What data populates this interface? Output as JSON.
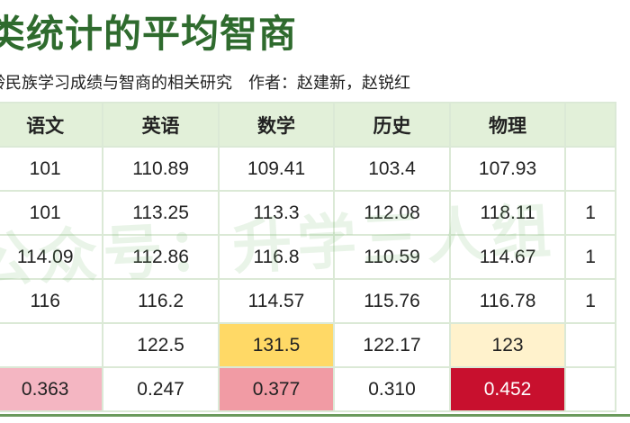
{
  "page": {
    "title": "类统计的平均智商",
    "subtitle": "龄民族学习成绩与智商的相关研究　作者：赵建新，赵锐红",
    "watermark": "公众号：升学三人组"
  },
  "table": {
    "headers": [
      "语文",
      "英语",
      "数学",
      "历史",
      "物理",
      ""
    ],
    "rows": [
      [
        {
          "v": "101"
        },
        {
          "v": "110.89"
        },
        {
          "v": "109.41"
        },
        {
          "v": "103.4"
        },
        {
          "v": "107.93"
        },
        {
          "v": ""
        }
      ],
      [
        {
          "v": "101"
        },
        {
          "v": "113.25"
        },
        {
          "v": "113.3"
        },
        {
          "v": "112.08"
        },
        {
          "v": "118.11"
        },
        {
          "v": "1"
        }
      ],
      [
        {
          "v": "114.09"
        },
        {
          "v": "112.86"
        },
        {
          "v": "116.8"
        },
        {
          "v": "110.59"
        },
        {
          "v": "114.67"
        },
        {
          "v": "1"
        }
      ],
      [
        {
          "v": "116"
        },
        {
          "v": "116.2"
        },
        {
          "v": "114.57"
        },
        {
          "v": "115.76"
        },
        {
          "v": "116.78"
        },
        {
          "v": "1"
        }
      ],
      [
        {
          "v": ""
        },
        {
          "v": "122.5"
        },
        {
          "v": "131.5",
          "bg": "#ffd966"
        },
        {
          "v": "122.17"
        },
        {
          "v": "123",
          "bg": "#fff2cc"
        },
        {
          "v": ""
        }
      ],
      [
        {
          "v": "0.363",
          "bg": "#f4b6c2"
        },
        {
          "v": "0.247"
        },
        {
          "v": "0.377",
          "bg": "#f19ba4"
        },
        {
          "v": "0.310"
        },
        {
          "v": "0.452",
          "bg": "#c8102e",
          "fg": "#ffffff"
        },
        {
          "v": ""
        }
      ]
    ]
  }
}
